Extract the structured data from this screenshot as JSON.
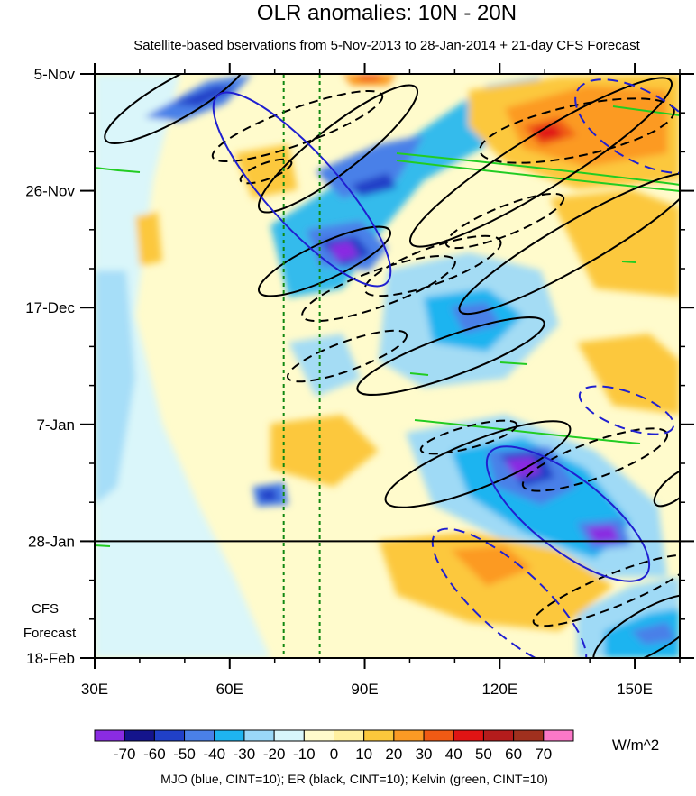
{
  "chart_data": {
    "type": "heatmap",
    "title": "OLR anomalies: 10N - 20N",
    "subtitle": "Satellite-based bservations from 5-Nov-2013 to 28-Jan-2014 + 21-day CFS Forecast",
    "x_axis": {
      "range_deg_east": [
        30,
        160
      ],
      "ticks": [
        {
          "value": 30,
          "label": "30E"
        },
        {
          "value": 60,
          "label": "60E"
        },
        {
          "value": 90,
          "label": "90E"
        },
        {
          "value": 120,
          "label": "120E"
        },
        {
          "value": 150,
          "label": "150E"
        }
      ],
      "minor_step": 10
    },
    "y_axis": {
      "range_days": [
        0,
        105
      ],
      "direction": "downward",
      "ticks": [
        {
          "value": 0,
          "label": "5-Nov"
        },
        {
          "value": 21,
          "label": "26-Nov"
        },
        {
          "value": 42,
          "label": "17-Dec"
        },
        {
          "value": 63,
          "label": "7-Jan"
        },
        {
          "value": 84,
          "label": "28-Jan"
        },
        {
          "value": 105,
          "label": "18-Feb"
        }
      ],
      "minor_step": 7
    },
    "forecast_start_day": 84,
    "forecast_label_line1": "CFS",
    "forecast_label_line2": "Forecast",
    "reference_lines_lon": [
      72,
      80
    ],
    "colorbar": {
      "levels": [
        -70,
        -60,
        -50,
        -40,
        -30,
        -20,
        -10,
        0,
        10,
        20,
        30,
        40,
        50,
        60,
        70
      ],
      "labels": [
        "-70",
        "-60",
        "-50",
        "-40",
        "-30",
        "-20",
        "-10",
        "0",
        "10",
        "20",
        "30",
        "40",
        "50",
        "60",
        "70"
      ],
      "colors": [
        "#8a2be2",
        "#14148c",
        "#2040c8",
        "#4a80e8",
        "#1eb4f0",
        "#9ad8f8",
        "#d8f6fc",
        "#fffbcc",
        "#fff0a0",
        "#fcc83c",
        "#fc9a24",
        "#f05a14",
        "#e01414",
        "#b41c1c",
        "#a0301e",
        "#fc78c8"
      ],
      "units": "W/m^2"
    },
    "footer": "MJO (blue, CINT=10); ER (black, CINT=10); Kelvin (green, CINT=10)",
    "series_colors": {
      "mjo": "#2020d0",
      "er": "#000000",
      "kelvin": "#22cc22"
    }
  }
}
